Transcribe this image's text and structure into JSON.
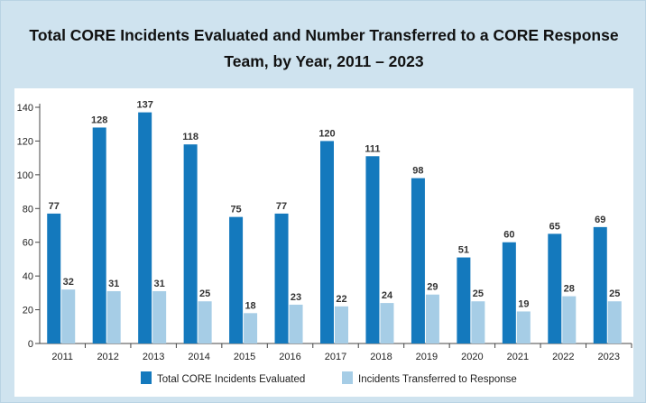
{
  "title_line1": "Total CORE Incidents Evaluated and Number Transferred to a CORE Response",
  "title_line2": "Team, by Year, 2011 – 2023",
  "colors": {
    "evaluated": "#1479bd",
    "transferred": "#a6cde6",
    "background": "#cfe3ef"
  },
  "chart_data": {
    "type": "bar",
    "title": "Total CORE Incidents Evaluated and Number Transferred to a CORE Response Team, by Year, 2011 – 2023",
    "categories": [
      "2011",
      "2012",
      "2013",
      "2014",
      "2015",
      "2016",
      "2017",
      "2018",
      "2019",
      "2020",
      "2021",
      "2022",
      "2023"
    ],
    "series": [
      {
        "name": "Total CORE Incidents Evaluated",
        "values": [
          77,
          128,
          137,
          118,
          75,
          77,
          120,
          111,
          98,
          51,
          60,
          65,
          69
        ]
      },
      {
        "name": "Incidents Transferred to Response",
        "values": [
          32,
          31,
          31,
          25,
          18,
          23,
          22,
          24,
          29,
          25,
          19,
          28,
          25
        ]
      }
    ],
    "ylim": [
      0,
      140
    ],
    "yticks": [
      0,
      20,
      40,
      60,
      80,
      100,
      120,
      140
    ],
    "grid": false,
    "legend": "bottom-center"
  }
}
